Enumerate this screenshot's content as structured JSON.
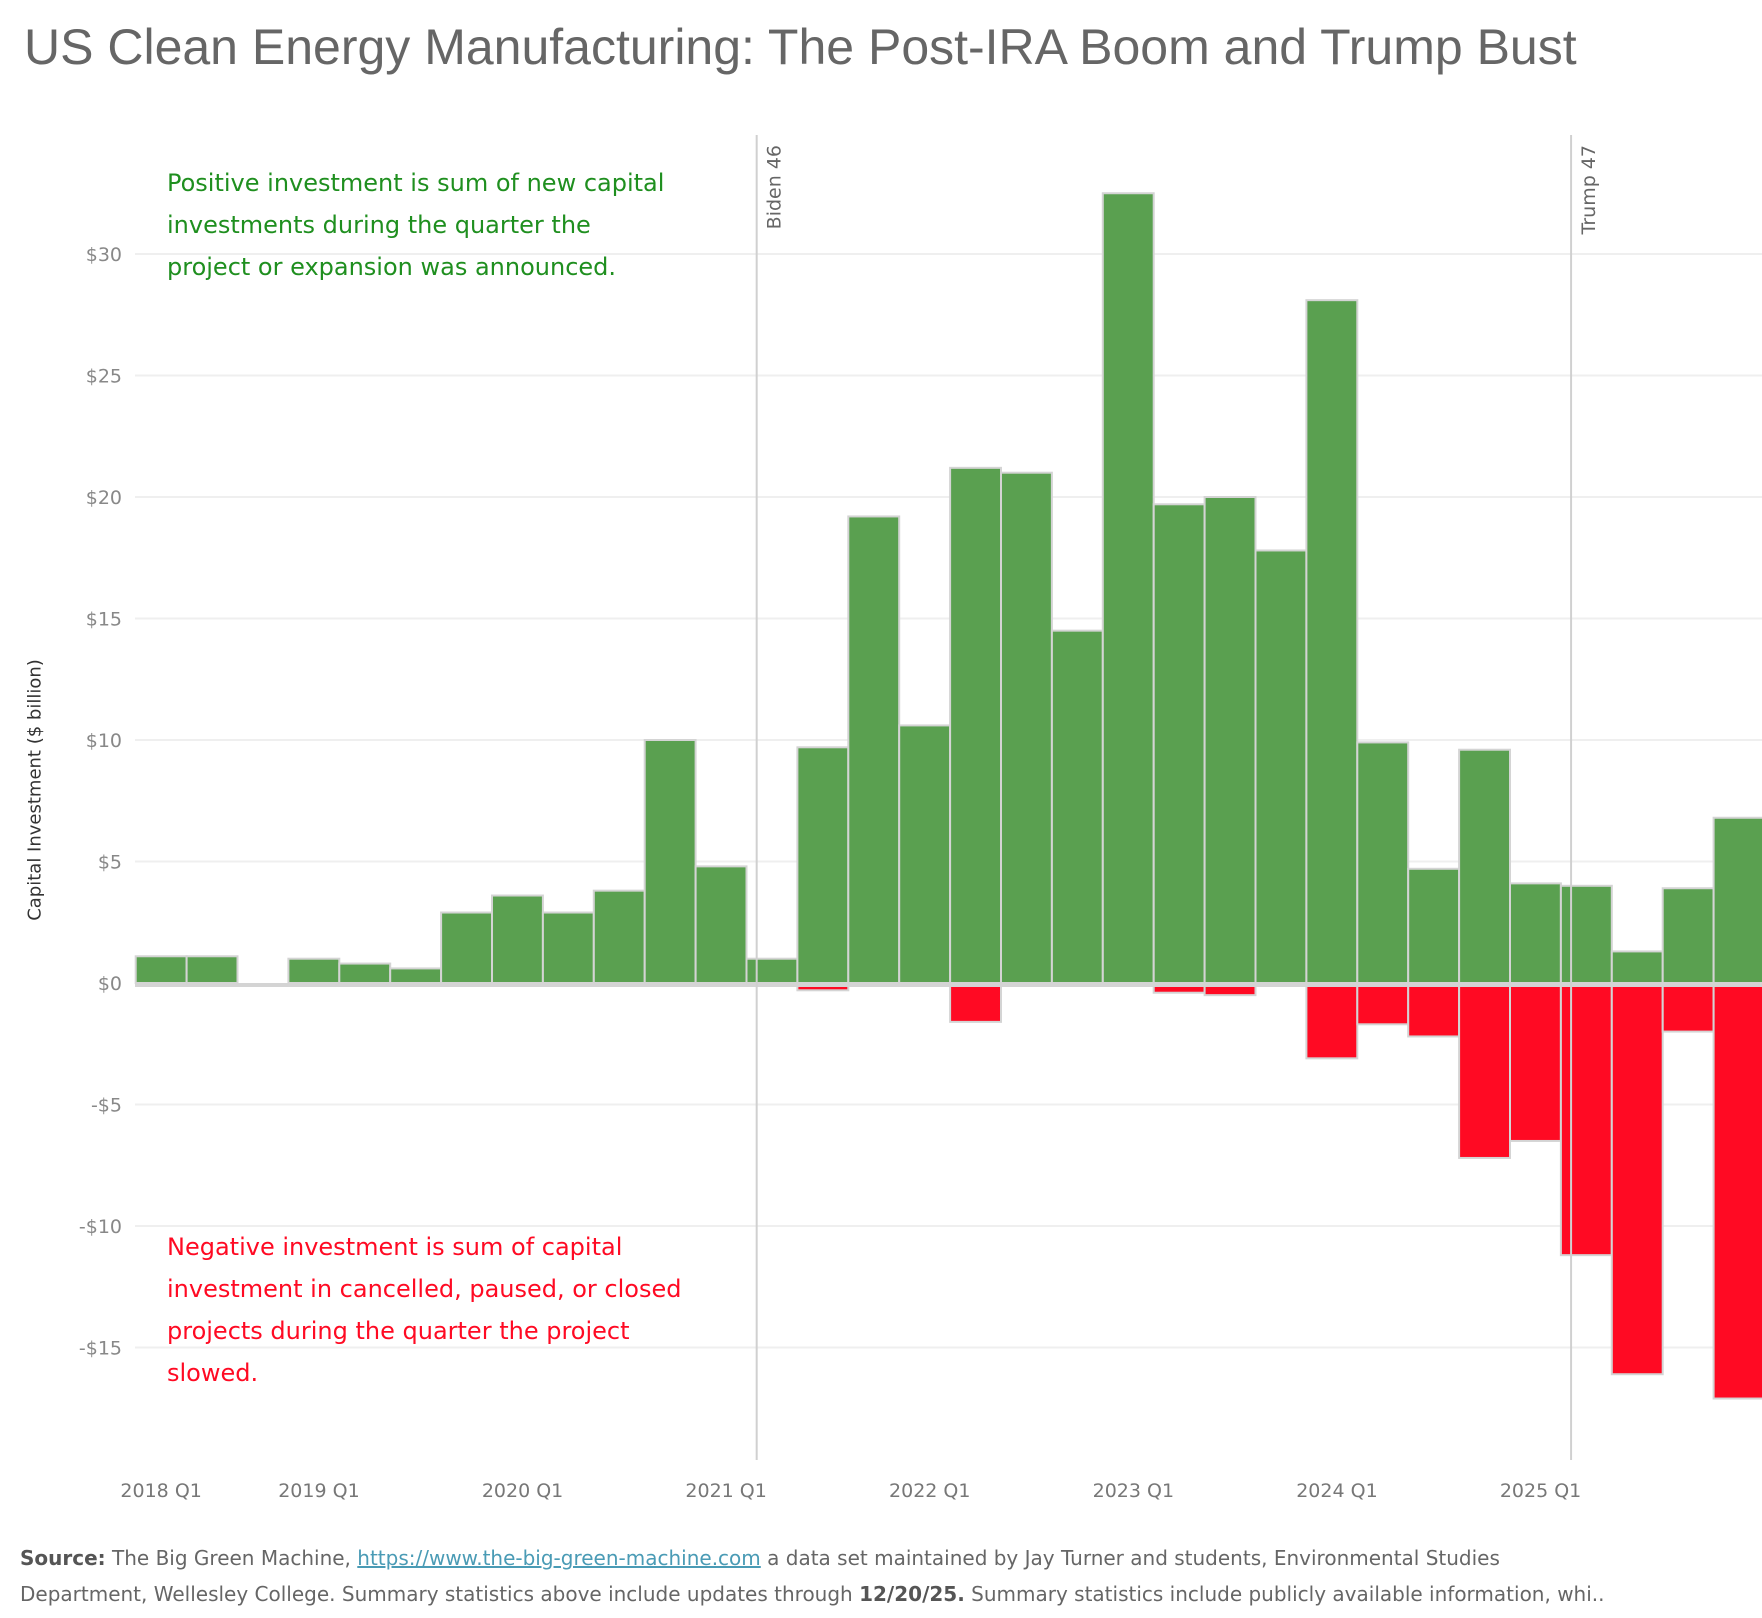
{
  "title": "US Clean Energy Manufacturing: The Post-IRA Boom and Trump Bust",
  "annotations": {
    "positive": [
      "Positive investment is sum of new capital",
      "investments during the quarter the",
      "project or expansion was announced."
    ],
    "negative": [
      "Negative investment is sum of capital",
      "investment in cancelled, paused, or closed",
      "projects during the quarter the project",
      "slowed."
    ]
  },
  "footer": {
    "source_label": "Source:",
    "source_text": " The Big Green Machine, ",
    "link": "https://www.the-big-green-machine.com",
    "after_link": " a data set maintained by Jay Turner and students, Environmental Studies",
    "line2_a": "Department, Wellesley College.  Summary statistics above include updates through ",
    "line2_bold": "12/20/25.",
    "line2_b": "  Summary statistics include publicly available information, whi.."
  },
  "colors": {
    "positive": "#5aa050",
    "negative": "#ff0a23",
    "positive_text": "#1f8f1f"
  },
  "chart_data": {
    "type": "bar",
    "title": "US Clean Energy Manufacturing: The Post-IRA Boom and Trump Bust",
    "xlabel": "",
    "ylabel": "Capital Investment ($ billion)",
    "ylim": [
      -19.6,
      35.5
    ],
    "yticks": [
      30,
      25,
      20,
      15,
      10,
      5,
      0,
      -5,
      -10,
      -15
    ],
    "ytick_labels": [
      "$30",
      "$25",
      "$20",
      "$15",
      "$10",
      "$5",
      "$0",
      "-$5",
      "-$10",
      "-$15"
    ],
    "grid": true,
    "categories": [
      "2018 Q1",
      "2018 Q2",
      "2018 Q3",
      "2018 Q4",
      "2019 Q1",
      "2019 Q2",
      "2019 Q3",
      "2019 Q4",
      "2020 Q1",
      "2020 Q2",
      "2020 Q3",
      "2020 Q4",
      "2021 Q1",
      "2021 Q2",
      "2021 Q3",
      "2021 Q4",
      "2022 Q1",
      "2022 Q2",
      "2022 Q3",
      "2022 Q4",
      "2023 Q1",
      "2023 Q2",
      "2023 Q3",
      "2023 Q4",
      "2024 Q1",
      "2024 Q2",
      "2024 Q3",
      "2024 Q4",
      "2025 Q1",
      "2025 Q2",
      "2025 Q3",
      "2025 Q4"
    ],
    "xtick_labels": [
      {
        "label": "2018 Q1",
        "category": 0.5
      },
      {
        "label": "2019 Q1",
        "category": 3.6
      },
      {
        "label": "2020 Q1",
        "category": 7.6
      },
      {
        "label": "2021 Q1",
        "category": 11.6
      },
      {
        "label": "2022 Q1",
        "category": 15.6
      },
      {
        "label": "2023 Q1",
        "category": 19.6
      },
      {
        "label": "2024 Q1",
        "category": 23.6
      },
      {
        "label": "2025 Q1",
        "category": 27.6
      }
    ],
    "series": [
      {
        "name": "Positive investment",
        "values": [
          1.1,
          1.1,
          0.05,
          1.0,
          0.8,
          0.6,
          2.9,
          3.6,
          2.9,
          3.8,
          10.0,
          4.8,
          1.0,
          9.7,
          19.2,
          10.6,
          21.2,
          21.0,
          14.5,
          32.5,
          19.7,
          20.0,
          17.8,
          28.1,
          9.9,
          4.7,
          9.6,
          4.1,
          4.0,
          1.3,
          3.9,
          6.8
        ]
      },
      {
        "name": "Negative investment",
        "values": [
          0,
          0,
          0,
          0,
          0,
          0,
          0,
          0,
          0,
          -0.1,
          0,
          -0.1,
          0,
          -0.3,
          0,
          0,
          -1.6,
          0,
          0,
          0,
          -0.4,
          -0.5,
          0,
          -3.1,
          -1.7,
          -2.2,
          -7.2,
          -6.5,
          -11.2,
          -16.1,
          -2.0,
          -17.1
        ]
      }
    ],
    "reference_lines": [
      {
        "label": "Biden 46",
        "category": 12.2
      },
      {
        "label": "Trump 47",
        "category": 28.2
      }
    ]
  }
}
